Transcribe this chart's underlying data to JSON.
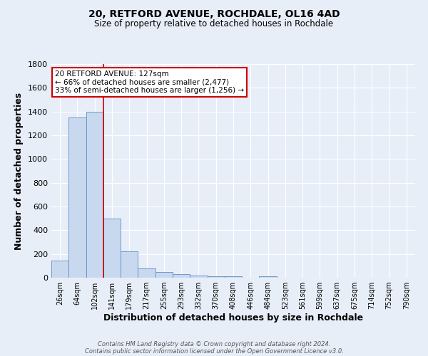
{
  "title_line1": "20, RETFORD AVENUE, ROCHDALE, OL16 4AD",
  "title_line2": "Size of property relative to detached houses in Rochdale",
  "xlabel": "Distribution of detached houses by size in Rochdale",
  "ylabel": "Number of detached properties",
  "categories": [
    "26sqm",
    "64sqm",
    "102sqm",
    "141sqm",
    "179sqm",
    "217sqm",
    "255sqm",
    "293sqm",
    "332sqm",
    "370sqm",
    "408sqm",
    "446sqm",
    "484sqm",
    "523sqm",
    "561sqm",
    "599sqm",
    "637sqm",
    "675sqm",
    "714sqm",
    "752sqm",
    "790sqm"
  ],
  "values": [
    145,
    1350,
    1400,
    500,
    225,
    80,
    50,
    30,
    20,
    10,
    15,
    0,
    15,
    0,
    0,
    0,
    0,
    0,
    0,
    0,
    0
  ],
  "bar_color": "#c8d9ef",
  "bar_edge_color": "#5b8ec4",
  "background_color": "#e8eef8",
  "grid_color": "#ffffff",
  "vline_position": 2.5,
  "vline_color": "#cc0000",
  "annotation_title": "20 RETFORD AVENUE: 127sqm",
  "annotation_line2": "← 66% of detached houses are smaller (2,477)",
  "annotation_line3": "33% of semi-detached houses are larger (1,256) →",
  "annotation_box_color": "#ffffff",
  "annotation_box_edge": "#cc0000",
  "ylim": [
    0,
    1800
  ],
  "yticks": [
    0,
    200,
    400,
    600,
    800,
    1000,
    1200,
    1400,
    1600,
    1800
  ],
  "footer_line1": "Contains HM Land Registry data © Crown copyright and database right 2024.",
  "footer_line2": "Contains public sector information licensed under the Open Government Licence v3.0."
}
